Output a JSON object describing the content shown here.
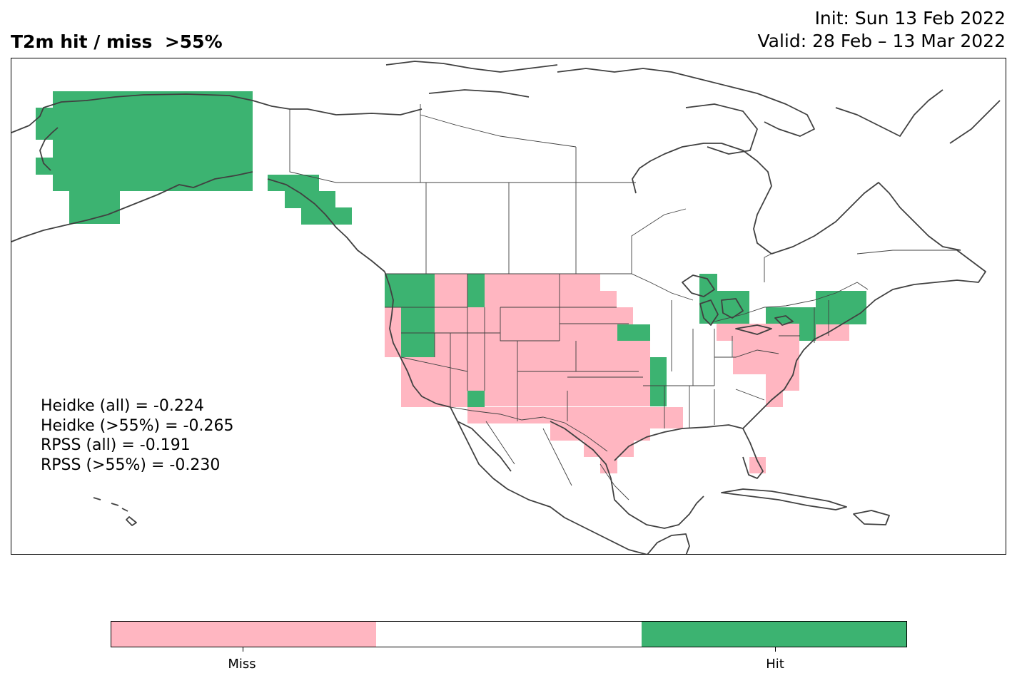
{
  "header": {
    "title": "T2m hit / miss  >55%",
    "init": "Init: Sun 13 Feb 2022",
    "valid": "Valid: 28 Feb – 13 Mar 2022"
  },
  "scores": {
    "heidke_all": "Heidke (all) = -0.224",
    "heidke_55": "Heidke (>55%) = -0.265",
    "rpss_all": "RPSS (all) = -0.191",
    "rpss_55": "RPSS (>55%) = -0.230"
  },
  "legend": {
    "categories": [
      {
        "label": "Miss",
        "color": "#ffb6c1"
      },
      {
        "label": "",
        "color": "#ffffff"
      },
      {
        "label": "Hit",
        "color": "#3cb371"
      }
    ],
    "tick_labels": [
      "Miss",
      "Hit"
    ]
  },
  "colors": {
    "miss": "#ffb6c1",
    "hit": "#3cb371",
    "coastline": "#404040",
    "border": "#404040"
  }
}
